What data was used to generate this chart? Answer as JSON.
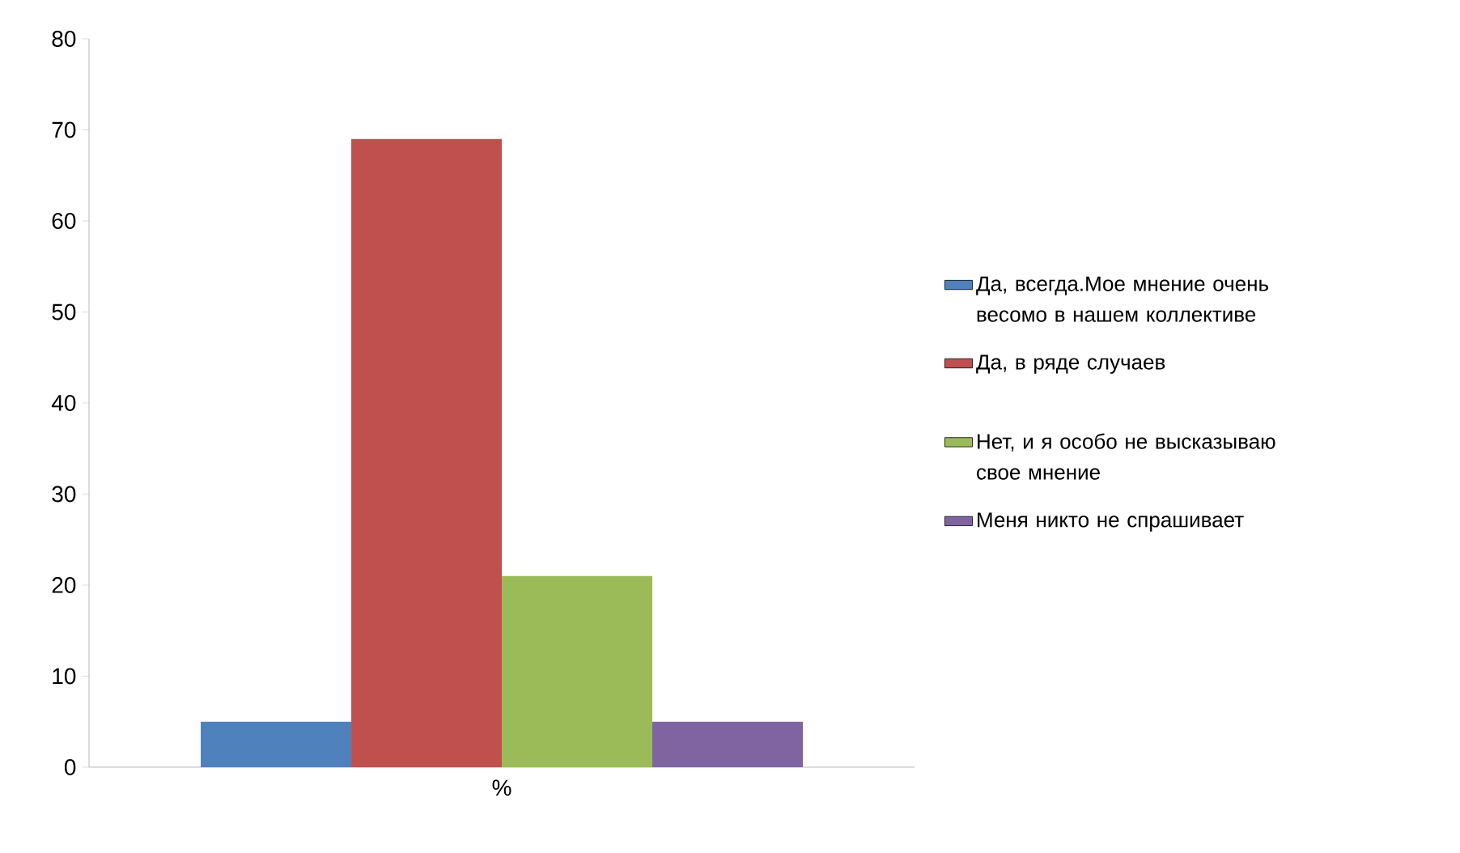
{
  "chart_data": {
    "type": "bar",
    "categories": [
      "%"
    ],
    "series": [
      {
        "name": "Да, всегда.Мое мнение очень весомо в нашем коллективе",
        "color": "#4f81bd",
        "values": [
          5
        ]
      },
      {
        "name": "Да, в ряде случаев",
        "color": "#c0504d",
        "values": [
          69
        ]
      },
      {
        "name": "Нет, и я особо не высказываю свое мнение",
        "color": "#9bbb59",
        "values": [
          21
        ]
      },
      {
        "name": "Меня никто не спрашивает",
        "color": "#8064a2",
        "values": [
          5
        ]
      }
    ],
    "ylim": [
      0,
      80
    ],
    "yticks": [
      0,
      10,
      20,
      30,
      40,
      50,
      60,
      70,
      80
    ],
    "legend": "right"
  }
}
